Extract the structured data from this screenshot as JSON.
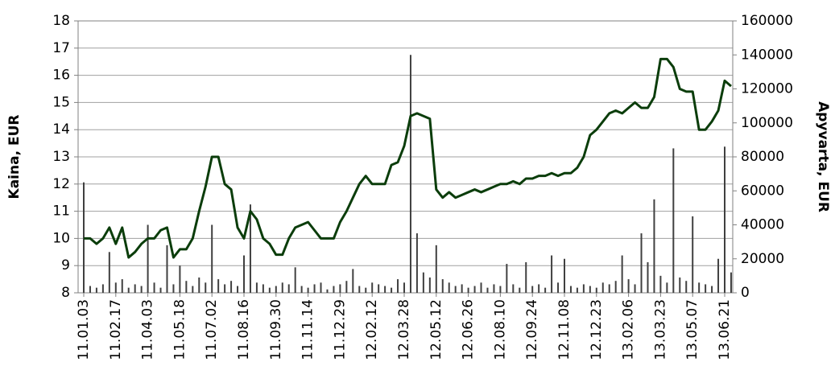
{
  "chart_data": {
    "type": "line_bar",
    "y_axis_label": "Kaina, EUR",
    "y2_axis_label": "Apyvarta, EUR",
    "categories": [
      "11.01.03",
      null,
      null,
      null,
      null,
      "11.02.17",
      null,
      null,
      null,
      null,
      "11.04.03",
      null,
      null,
      null,
      null,
      "11.05.18",
      null,
      null,
      null,
      null,
      "11.07.02",
      null,
      null,
      null,
      null,
      "11.08.16",
      null,
      null,
      null,
      null,
      "11.09.30",
      null,
      null,
      null,
      null,
      "11.11.14",
      null,
      null,
      null,
      null,
      "11.12.29",
      null,
      null,
      null,
      null,
      "12.02.12",
      null,
      null,
      null,
      null,
      "12.03.28",
      null,
      null,
      null,
      null,
      "12.05.12",
      null,
      null,
      null,
      null,
      "12.06.26",
      null,
      null,
      null,
      null,
      "12.08.10",
      null,
      null,
      null,
      null,
      "12.09.24",
      null,
      null,
      null,
      null,
      "12.11.08",
      null,
      null,
      null,
      null,
      "12.12.23",
      null,
      null,
      null,
      null,
      "13.02.06",
      null,
      null,
      null,
      null,
      "13.03.23",
      null,
      null,
      null,
      null,
      "13.05.07",
      null,
      null,
      null,
      null,
      "13.06.21",
      null
    ],
    "series": [
      {
        "name": "Kaina",
        "kind": "line",
        "color": "#0b3d0b",
        "values": [
          10.0,
          10.0,
          9.8,
          10.0,
          10.4,
          9.8,
          10.4,
          9.3,
          9.5,
          9.8,
          10.0,
          10.0,
          10.3,
          10.4,
          9.3,
          9.6,
          9.6,
          10.0,
          11.0,
          11.9,
          13.0,
          13.0,
          12.0,
          11.8,
          10.4,
          10.0,
          11.0,
          10.7,
          10.0,
          9.8,
          9.4,
          9.4,
          10.0,
          10.4,
          10.5,
          10.6,
          10.3,
          10.0,
          10.0,
          10.0,
          10.6,
          11.0,
          11.5,
          12.0,
          12.3,
          12.0,
          12.0,
          12.0,
          12.7,
          12.8,
          13.4,
          14.5,
          14.6,
          14.5,
          14.4,
          11.8,
          11.5,
          11.7,
          11.5,
          11.6,
          11.7,
          11.8,
          11.7,
          11.8,
          11.9,
          12.0,
          12.0,
          12.1,
          12.0,
          12.2,
          12.2,
          12.3,
          12.3,
          12.4,
          12.3,
          12.4,
          12.4,
          12.6,
          13.0,
          13.8,
          14.0,
          14.3,
          14.6,
          14.7,
          14.6,
          14.8,
          15.0,
          14.8,
          14.8,
          15.2,
          16.6,
          16.6,
          16.3,
          15.5,
          15.4,
          15.4,
          14.0,
          14.0,
          14.3,
          14.7,
          15.8,
          15.6
        ]
      },
      {
        "name": "Apyvarta",
        "kind": "bar",
        "axis": "y2",
        "color": "#404040",
        "values": [
          65000,
          4000,
          3000,
          5000,
          24000,
          6000,
          8000,
          3000,
          5000,
          4000,
          40000,
          6000,
          3000,
          28000,
          5000,
          16000,
          7000,
          4000,
          9000,
          6000,
          40000,
          8000,
          5000,
          7000,
          4000,
          22000,
          52000,
          6000,
          5000,
          3000,
          4000,
          6000,
          5000,
          15000,
          4000,
          3000,
          5000,
          6000,
          2000,
          4000,
          5000,
          7000,
          14000,
          4000,
          3000,
          6000,
          5000,
          4000,
          3000,
          8000,
          6000,
          140000,
          35000,
          12000,
          9000,
          28000,
          8000,
          6000,
          4000,
          5000,
          3000,
          4000,
          6000,
          3000,
          5000,
          4000,
          17000,
          5000,
          3000,
          18000,
          4000,
          5000,
          3000,
          22000,
          6000,
          20000,
          4000,
          3000,
          5000,
          4000,
          3000,
          6000,
          5000,
          7000,
          22000,
          8000,
          5000,
          35000,
          18000,
          55000,
          10000,
          6000,
          85000,
          9000,
          7000,
          45000,
          6000,
          5000,
          4000,
          20000,
          86000,
          12000
        ]
      }
    ],
    "ylim": [
      8,
      18
    ],
    "yticks": [
      8,
      9,
      10,
      11,
      12,
      13,
      14,
      15,
      16,
      17,
      18
    ],
    "y2lim": [
      0,
      160000
    ],
    "y2ticks": [
      0,
      20000,
      40000,
      60000,
      80000,
      100000,
      120000,
      140000,
      160000
    ],
    "grid": true
  }
}
